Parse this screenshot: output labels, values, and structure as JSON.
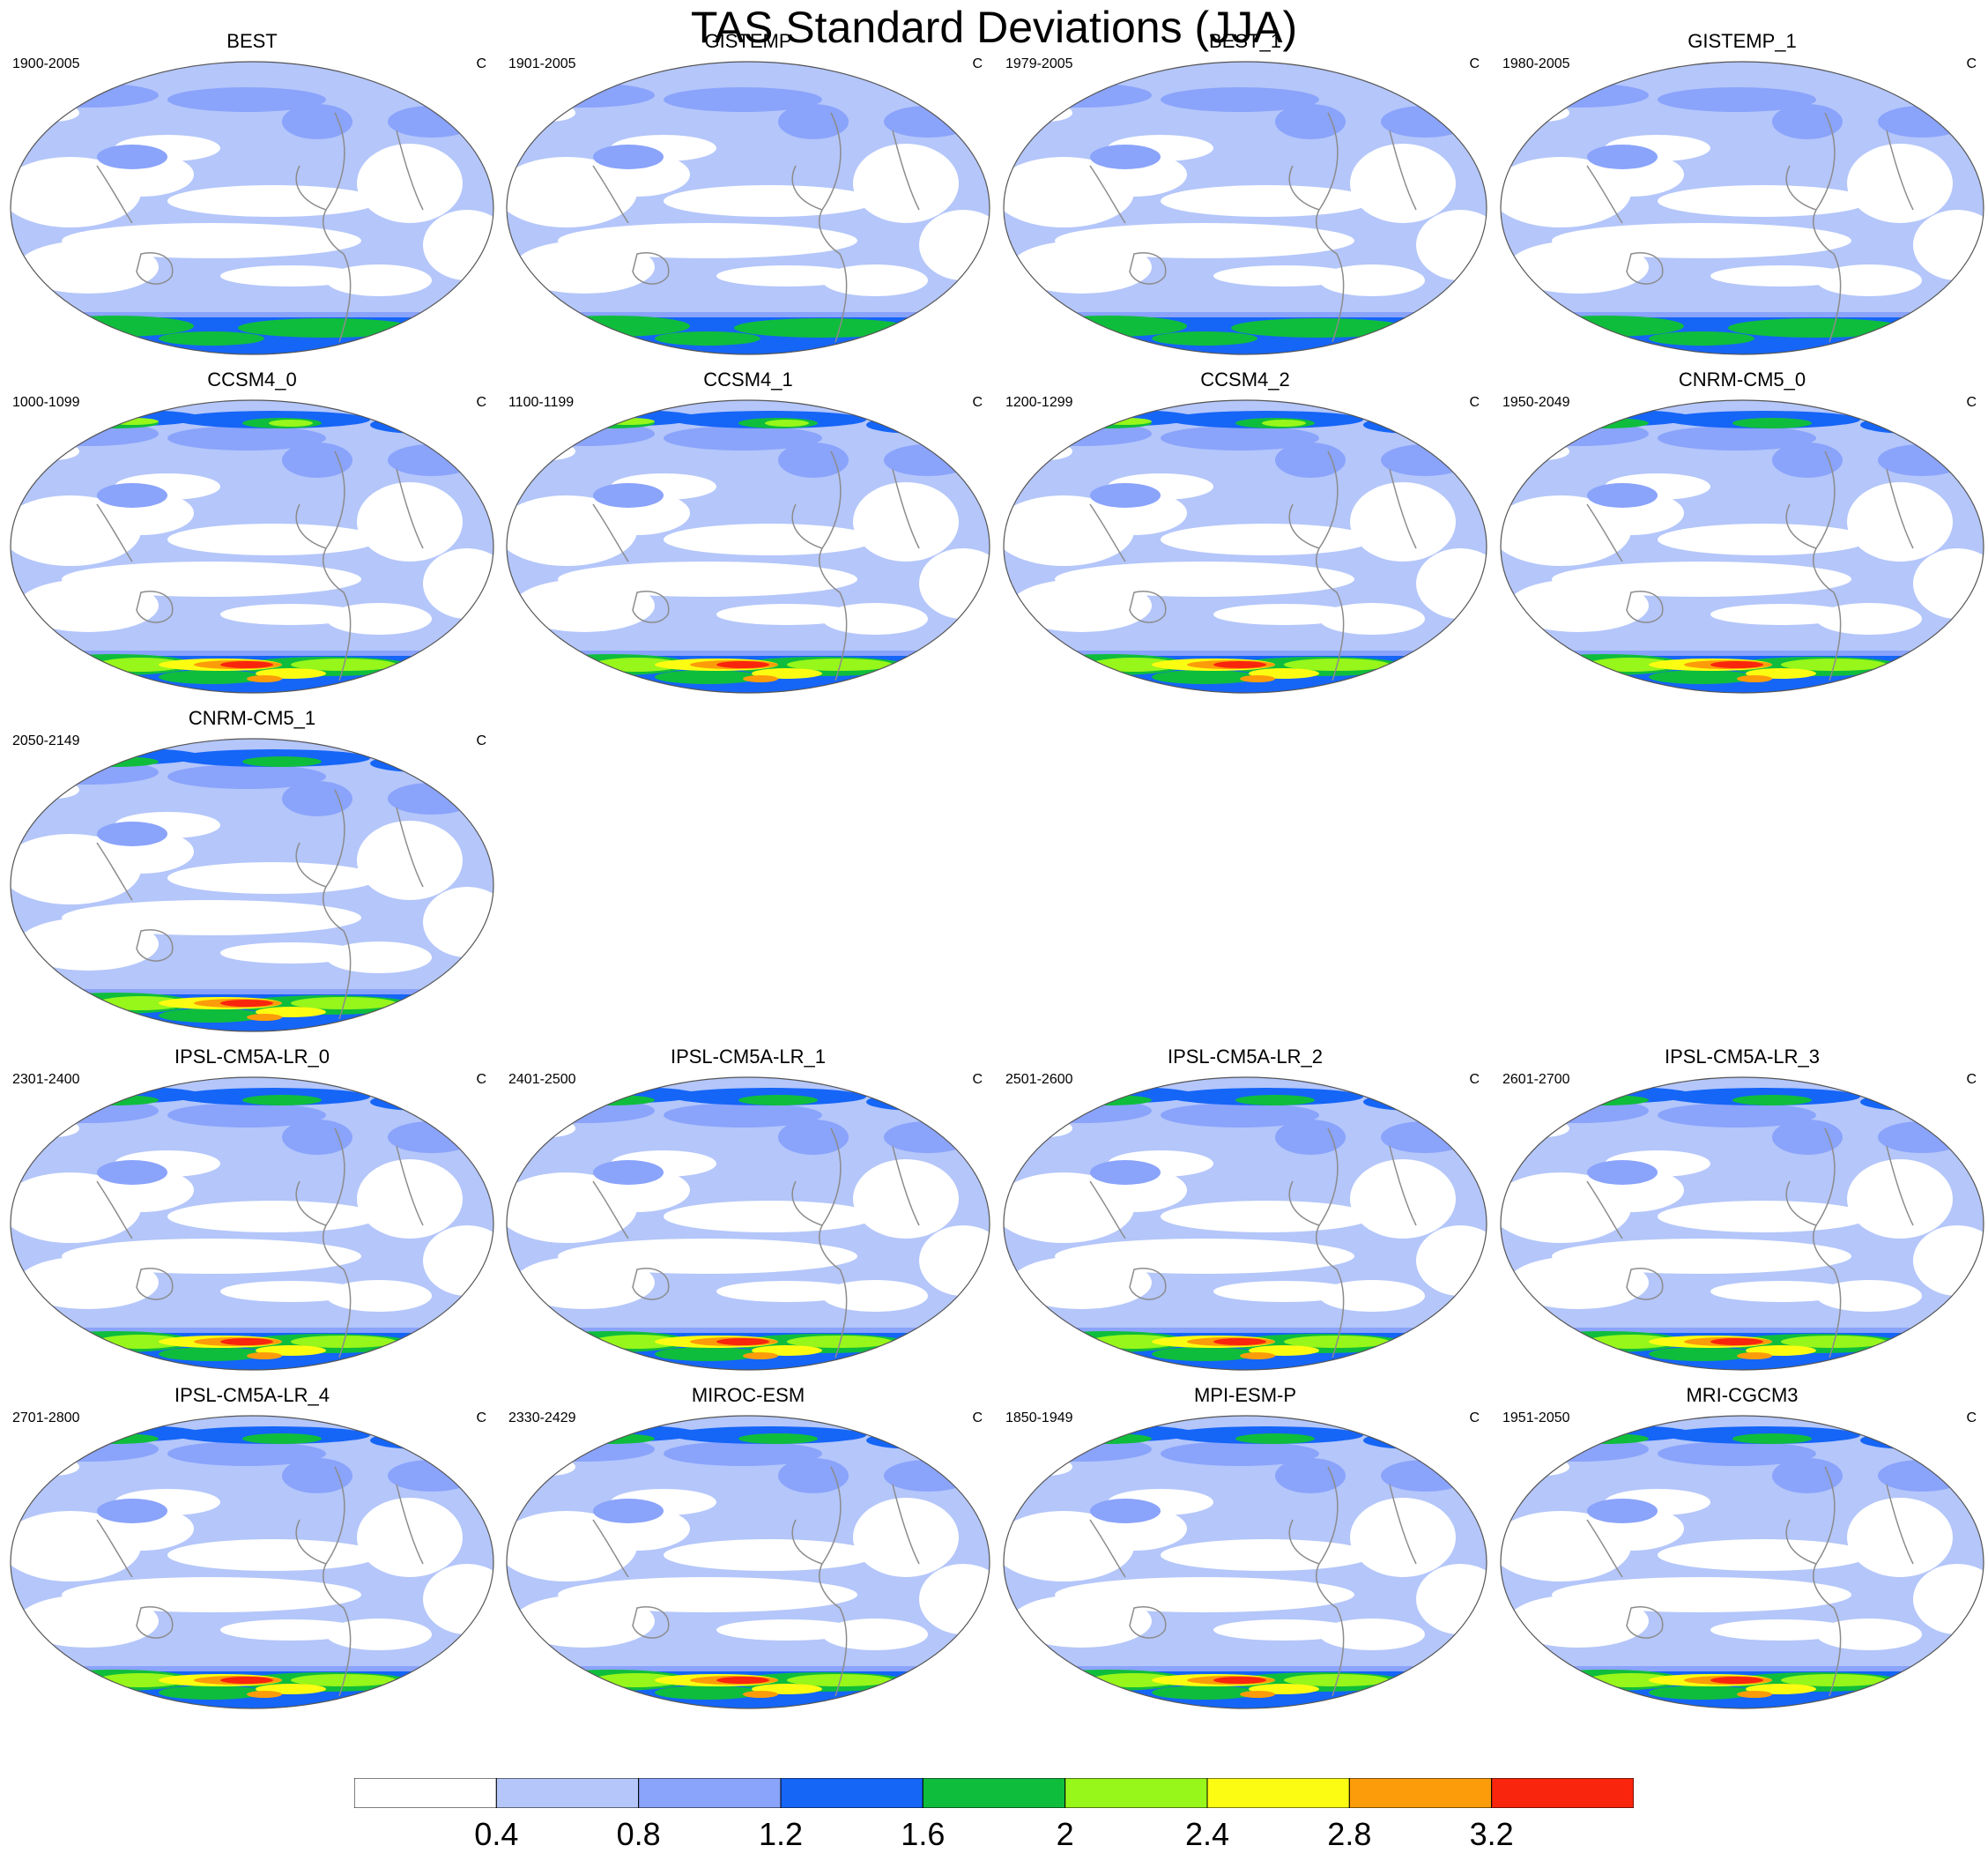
{
  "figure": {
    "title": "TAS Standard Deviations (JJA)"
  },
  "colors": {
    "levels": [
      "#ffffff",
      "#b4c6fa",
      "#8aa3fb",
      "#1565f7",
      "#0fbd3c",
      "#97f61a",
      "#fcfc12",
      "#fc9c0a",
      "#f9250d"
    ],
    "coastline": "#8c8c8c",
    "border": "#555555"
  },
  "panels": [
    {
      "title": "BEST",
      "period": "1900-2005",
      "units": "C",
      "antarctic_max_level": 5,
      "nh_max_level": 2
    },
    {
      "title": "GISTEMP",
      "period": "1901-2005",
      "units": "C",
      "antarctic_max_level": 5,
      "nh_max_level": 2
    },
    {
      "title": "BEST_1",
      "period": "1979-2005",
      "units": "C",
      "antarctic_max_level": 5,
      "nh_max_level": 2
    },
    {
      "title": "GISTEMP_1",
      "period": "1980-2005",
      "units": "C",
      "antarctic_max_level": 5,
      "nh_max_level": 2
    },
    {
      "title": "CCSM4_0",
      "period": "1000-1099",
      "units": "C",
      "antarctic_max_level": 8,
      "nh_max_level": 5
    },
    {
      "title": "CCSM4_1",
      "period": "1100-1199",
      "units": "C",
      "antarctic_max_level": 8,
      "nh_max_level": 5
    },
    {
      "title": "CCSM4_2",
      "period": "1200-1299",
      "units": "C",
      "antarctic_max_level": 8,
      "nh_max_level": 5
    },
    {
      "title": "CNRM-CM5_0",
      "period": "1950-2049",
      "units": "C",
      "antarctic_max_level": 8,
      "nh_max_level": 4
    },
    {
      "title": "CNRM-CM5_1",
      "period": "2050-2149",
      "units": "C",
      "antarctic_max_level": 8,
      "nh_max_level": 4
    },
    {
      "title": "IPSL-CM5A-LR_0",
      "period": "2301-2400",
      "units": "C",
      "antarctic_max_level": 8,
      "nh_max_level": 4
    },
    {
      "title": "IPSL-CM5A-LR_1",
      "period": "2401-2500",
      "units": "C",
      "antarctic_max_level": 8,
      "nh_max_level": 4
    },
    {
      "title": "IPSL-CM5A-LR_2",
      "period": "2501-2600",
      "units": "C",
      "antarctic_max_level": 8,
      "nh_max_level": 4
    },
    {
      "title": "IPSL-CM5A-LR_3",
      "period": "2601-2700",
      "units": "C",
      "antarctic_max_level": 8,
      "nh_max_level": 4
    },
    {
      "title": "IPSL-CM5A-LR_4",
      "period": "2701-2800",
      "units": "C",
      "antarctic_max_level": 8,
      "nh_max_level": 4
    },
    {
      "title": "MIROC-ESM",
      "period": "2330-2429",
      "units": "C",
      "antarctic_max_level": 8,
      "nh_max_level": 4
    },
    {
      "title": "MPI-ESM-P",
      "period": "1850-1949",
      "units": "C",
      "antarctic_max_level": 8,
      "nh_max_level": 4
    },
    {
      "title": "MRI-CGCM3",
      "period": "1951-2050",
      "units": "C",
      "antarctic_max_level": 8,
      "nh_max_level": 4
    }
  ],
  "colorbar": {
    "labels": [
      "0.4",
      "0.8",
      "1.2",
      "1.6",
      "2",
      "2.4",
      "2.8",
      "3.2"
    ]
  }
}
